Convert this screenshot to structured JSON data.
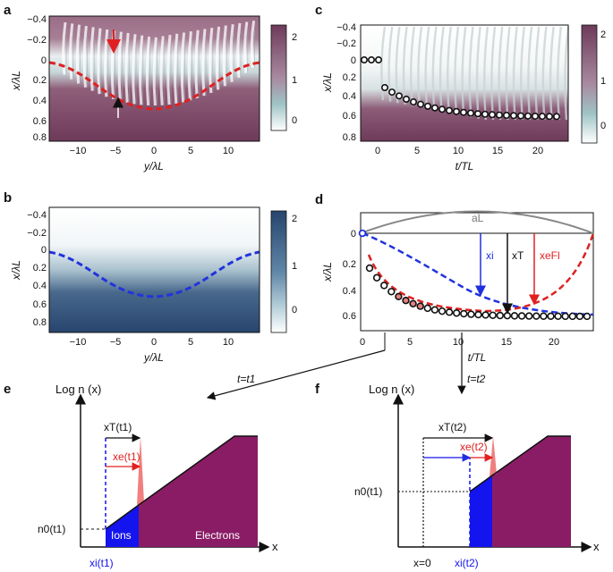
{
  "panels": {
    "a": {
      "label": "a",
      "x_label": "y/λL",
      "y_label": "x/λL",
      "x_ticks": [
        "−10",
        "−5",
        "0",
        "5",
        "10"
      ],
      "y_ticks": [
        "−0.4",
        "−0.2",
        "0",
        "0.2",
        "0.4",
        "0.6",
        "0.8"
      ],
      "colorbar_ticks": [
        "2",
        "1",
        "0"
      ],
      "colors": {
        "high": "#6e3a5a",
        "low": "#f2f7f7",
        "curve": "#dd2222"
      }
    },
    "b": {
      "label": "b",
      "x_label": "y/λL",
      "y_label": "x/λL",
      "x_ticks": [
        "−10",
        "−5",
        "0",
        "5",
        "10"
      ],
      "y_ticks": [
        "−0.4",
        "−0.2",
        "0",
        "0.2",
        "0.4",
        "0.6",
        "0.8"
      ],
      "colorbar_ticks": [
        "2",
        "1",
        "0"
      ],
      "colors": {
        "high": "#27456e",
        "low": "#f4f8fa",
        "curve": "#2233dd"
      }
    },
    "c": {
      "label": "c",
      "x_label": "t/TL",
      "y_label": "x/λL",
      "x_ticks": [
        "0",
        "5",
        "10",
        "15",
        "20"
      ],
      "y_ticks": [
        "−0.4",
        "−0.2",
        "0",
        "0.2",
        "0.4",
        "0.6",
        "0.8"
      ],
      "colorbar_ticks": [
        "2",
        "1",
        "0"
      ]
    },
    "d": {
      "label": "d",
      "x_label": "t/TL",
      "y_label": "x/λL",
      "x_ticks": [
        "0",
        "5",
        "10",
        "15",
        "20"
      ],
      "y_ticks": [
        "0",
        "0.2",
        "0.4",
        "0.6"
      ],
      "laser_label": "aL",
      "arrow_labels": {
        "ion": "xi",
        "total": "xT",
        "electron": "xeFl"
      }
    },
    "e": {
      "label": "e",
      "y_axis_label": "Log n (x)",
      "x_axis_label": "x",
      "xT_label": "xT(t1)",
      "xe_label": "xe(t1)",
      "n0_label": "n0(t1)",
      "xi_label": "xi(t1)",
      "ions_label": "Ions",
      "electrons_label": "Electrons",
      "time_label": "t=t1"
    },
    "f": {
      "label": "f",
      "y_axis_label": "Log n (x)",
      "x_axis_label": "x",
      "xT_label": "xT(t2)",
      "xe_label": "xe(t2)",
      "n0_label": "n0(t1)",
      "xi_label": "xi(t2)",
      "x0_label": "x=0",
      "time_label": "t=t2"
    }
  }
}
